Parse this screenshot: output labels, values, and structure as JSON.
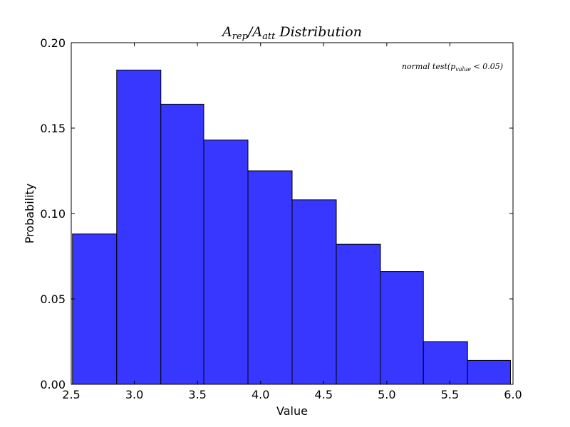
{
  "chart_data": {
    "type": "bar",
    "title": {
      "parts": [
        {
          "text": "A",
          "sub": false
        },
        {
          "text": "rep",
          "sub": true
        },
        {
          "text": "/A",
          "sub": false
        },
        {
          "text": "att",
          "sub": true
        },
        {
          "text": " Distribution",
          "sub": false
        }
      ]
    },
    "xlabel": "Value",
    "ylabel": "Probability",
    "xlim": [
      2.5,
      6.0
    ],
    "ylim": [
      0.0,
      0.2
    ],
    "xticks": [
      "2.5",
      "3.0",
      "3.5",
      "4.0",
      "4.5",
      "5.0",
      "5.5",
      "6.0"
    ],
    "yticks": [
      "0.00",
      "0.05",
      "0.10",
      "0.15",
      "0.20"
    ],
    "bins": [
      {
        "x0": 2.51,
        "x1": 2.86,
        "value": 0.088
      },
      {
        "x0": 2.86,
        "x1": 3.21,
        "value": 0.184
      },
      {
        "x0": 3.21,
        "x1": 3.55,
        "value": 0.164
      },
      {
        "x0": 3.55,
        "x1": 3.9,
        "value": 0.143
      },
      {
        "x0": 3.9,
        "x1": 4.25,
        "value": 0.125
      },
      {
        "x0": 4.25,
        "x1": 4.6,
        "value": 0.108
      },
      {
        "x0": 4.6,
        "x1": 4.95,
        "value": 0.082
      },
      {
        "x0": 4.95,
        "x1": 5.29,
        "value": 0.066
      },
      {
        "x0": 5.29,
        "x1": 5.64,
        "value": 0.025
      },
      {
        "x0": 5.64,
        "x1": 5.98,
        "value": 0.014
      }
    ],
    "bar_color": "#3333ff",
    "bar_edge_color": "#000000",
    "annotation": {
      "parts": [
        {
          "text": "normal test(p",
          "sub": false
        },
        {
          "text": "value",
          "sub": true
        },
        {
          "text": " < 0.05)",
          "sub": false
        }
      ],
      "position": "top-right"
    },
    "grid": false,
    "legend": "none"
  }
}
